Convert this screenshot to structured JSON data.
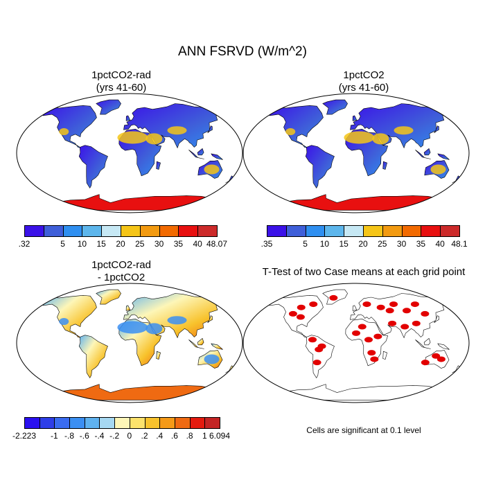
{
  "title": "ANN FSRVD (W/m^2)",
  "panels": [
    {
      "id": "p1",
      "title_line1": "1pctCO2-rad",
      "title_line2": "(yrs 41-60)"
    },
    {
      "id": "p2",
      "title_line1": "1pctCO2",
      "title_line2": "(yrs 41-60)"
    },
    {
      "id": "p3",
      "title_line1": "1pctCO2-rad",
      "title_line2": "- 1pctCO2"
    },
    {
      "id": "p4",
      "title_line1": "T-Test of two Case means at each grid point",
      "title_line2": ""
    }
  ],
  "colorbars": {
    "cb1": {
      "labels": [
        ".32",
        "5",
        "10",
        "15",
        "20",
        "25",
        "30",
        "35",
        "40",
        "48.07"
      ],
      "colors": [
        "#3b12e8",
        "#3f5fd9",
        "#2f8ff0",
        "#5db6ec",
        "#c6e8f4",
        "#f5c518",
        "#f29a10",
        "#f26a00",
        "#e81010",
        "#cc2a2a"
      ]
    },
    "cb2": {
      "labels": [
        ".35",
        "5",
        "10",
        "15",
        "20",
        "25",
        "30",
        "35",
        "40",
        "48.1"
      ],
      "colors": [
        "#3b12e8",
        "#3f5fd9",
        "#2f8ff0",
        "#5db6ec",
        "#c6e8f4",
        "#f5c518",
        "#f29a10",
        "#f26a00",
        "#e81010",
        "#cc2a2a"
      ]
    },
    "cb3": {
      "labels": [
        "-2.223",
        "-1",
        "-.8",
        "-.6",
        "-.4",
        "-.2",
        "0",
        ".2",
        ".4",
        ".6",
        ".8",
        "1",
        "6.094"
      ],
      "colors": [
        "#2a10f0",
        "#2e3ee8",
        "#3a6cf0",
        "#3b8ff2",
        "#5fb2ef",
        "#a6d8f2",
        "#fdf6b8",
        "#fce26c",
        "#f8c22c",
        "#f59a18",
        "#ef6a12",
        "#e51b0f",
        "#c42424"
      ]
    }
  },
  "significance_note": "Cells are significant at 0.1 level",
  "colors": {
    "ocean": "#ffffff",
    "significant": "#e20000",
    "coastline": "#000000"
  }
}
